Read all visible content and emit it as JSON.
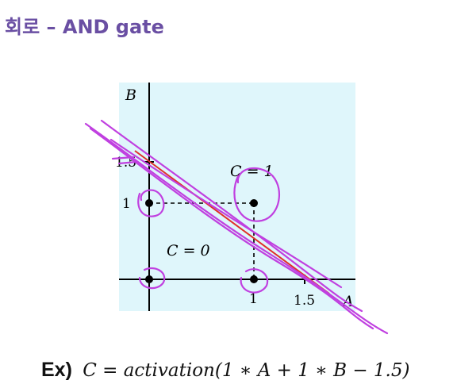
{
  "slide": {
    "title": "회로 – AND gate"
  },
  "diagram": {
    "axis_x_label": "A",
    "axis_y_label": "B",
    "tick_x_1": "1",
    "tick_x_15": "1.5",
    "tick_y_1": "1",
    "tick_y_15": "1.5",
    "region_low_label": "C = 0",
    "region_high_label": "C = 1",
    "points": [
      {
        "a": 0,
        "b": 0
      },
      {
        "a": 1,
        "b": 0
      },
      {
        "a": 0,
        "b": 1
      },
      {
        "a": 1,
        "b": 1
      }
    ],
    "decision_line": "A + B = 1.5",
    "colors": {
      "background": "#dff6fb",
      "axis": "#000000",
      "decision_line": "#e0302a",
      "annotation": "#c040e0",
      "title": "#6a4fa3"
    }
  },
  "formula": {
    "prefix": "Ex)",
    "expression": "C = activation(1 ∗ A + 1 ∗ B − 1.5)"
  }
}
